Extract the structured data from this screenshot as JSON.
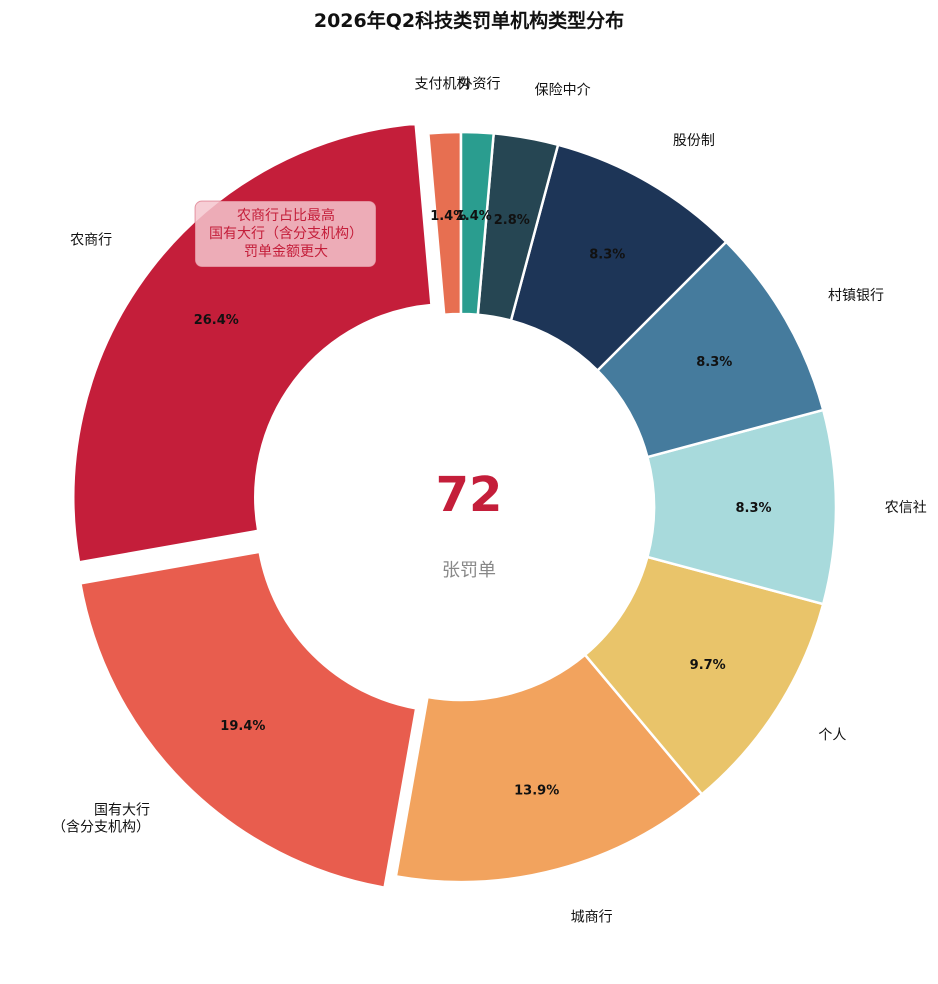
{
  "chart_data": {
    "type": "pie",
    "donut": true,
    "title": "2026年Q2科技类罚单机构类型分布",
    "start_angle_deg": 90,
    "direction": "counterclockwise",
    "exploded": [
      "农商行",
      "国有大行\n（含分支机构）"
    ],
    "slices": [
      {
        "label": "支付机构",
        "value": 1,
        "percent_label": "1.4%",
        "color": "#E76F51"
      },
      {
        "label": "农商行",
        "value": 19,
        "percent_label": "26.4%",
        "color": "#C41E3A"
      },
      {
        "label": "国有大行\n（含分支机构）",
        "value": 14,
        "percent_label": "19.4%",
        "color": "#E85D4E"
      },
      {
        "label": "城商行",
        "value": 10,
        "percent_label": "13.9%",
        "color": "#F2A35E"
      },
      {
        "label": "个人",
        "value": 7,
        "percent_label": "9.7%",
        "color": "#E9C46A"
      },
      {
        "label": "农信社",
        "value": 6,
        "percent_label": "8.3%",
        "color": "#A8DADC"
      },
      {
        "label": "村镇银行",
        "value": 6,
        "percent_label": "8.3%",
        "color": "#457B9D"
      },
      {
        "label": "股份制",
        "value": 6,
        "percent_label": "8.3%",
        "color": "#1D3557"
      },
      {
        "label": "保险中介",
        "value": 2,
        "percent_label": "2.8%",
        "color": "#264653"
      },
      {
        "label": "外资行",
        "value": 1,
        "percent_label": "1.4%",
        "color": "#2A9D8F"
      }
    ],
    "center_value": "72",
    "center_value_color": "#C41E3A",
    "center_label": "张罚单",
    "annotation": {
      "text": "农商行占比最高\n国有大行（含分支机构）\n罚单金额更大",
      "text_color": "#C41E3A",
      "box_color": "#F4C6CE"
    }
  }
}
